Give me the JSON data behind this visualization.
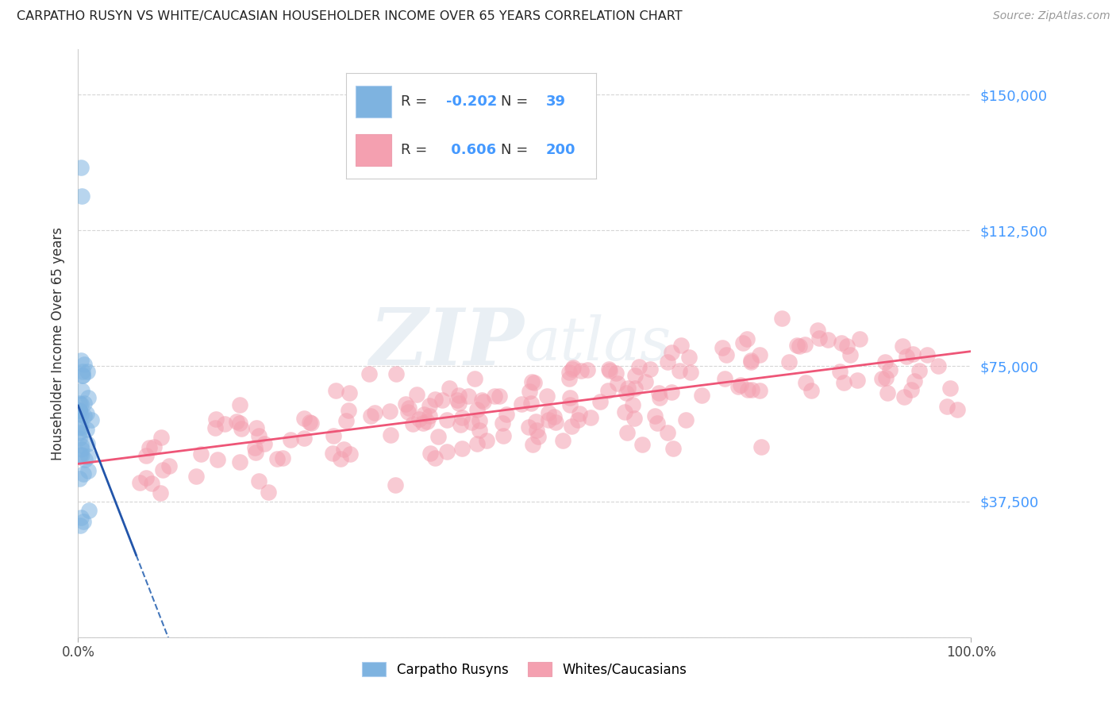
{
  "title": "CARPATHO RUSYN VS WHITE/CAUCASIAN HOUSEHOLDER INCOME OVER 65 YEARS CORRELATION CHART",
  "source": "Source: ZipAtlas.com",
  "ylabel": "Householder Income Over 65 years",
  "watermark_zip": "ZIP",
  "watermark_atlas": "atlas",
  "legend_label1": "Carpatho Rusyns",
  "legend_label2": "Whites/Caucasians",
  "R1": -0.202,
  "N1": 39,
  "R2": 0.606,
  "N2": 200,
  "color_blue": "#7EB3E0",
  "color_pink": "#F4A0B0",
  "color_blue_line": "#4477BB",
  "color_pink_line": "#EE5577",
  "color_blue_solid_line": "#2255AA",
  "color_axis_labels": "#4499FF",
  "background_color": "#ffffff",
  "grid_color": "#bbbbbb",
  "ylim": [
    0,
    162500
  ],
  "xlim": [
    0.0,
    1.0
  ],
  "yticks": [
    0,
    37500,
    75000,
    112500,
    150000
  ],
  "ytick_labels": [
    "",
    "$37,500",
    "$75,000",
    "$112,500",
    "$150,000"
  ]
}
